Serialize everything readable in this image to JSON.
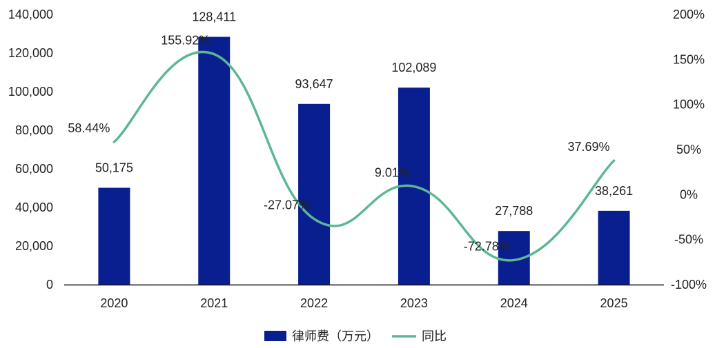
{
  "chart_data": {
    "type": "bar",
    "categories": [
      "2020",
      "2021",
      "2022",
      "2023",
      "2024",
      "2025"
    ],
    "series": [
      {
        "name": "律师费（万元）",
        "type": "bar",
        "axis": "left",
        "values": [
          50175,
          128411,
          93647,
          102089,
          27788,
          38261
        ],
        "labels": [
          "50,175",
          "128,411",
          "93,647",
          "102,089",
          "27,788",
          "38,261"
        ]
      },
      {
        "name": "同比",
        "type": "line",
        "axis": "right",
        "values": [
          58.44,
          155.92,
          -27.07,
          9.01,
          -72.78,
          37.69
        ],
        "labels": [
          "58.44%",
          "155.92%",
          "-27.07%",
          "9.01%",
          "-72.78%",
          "37.69%"
        ]
      }
    ],
    "left_axis": {
      "ylim": [
        0,
        140000
      ],
      "ticks": [
        "0",
        "20,000",
        "40,000",
        "60,000",
        "80,000",
        "100,000",
        "120,000",
        "140,000"
      ]
    },
    "right_axis": {
      "ylim": [
        -100,
        200
      ],
      "ticks": [
        "-100%",
        "-50%",
        "0%",
        "50%",
        "100%",
        "150%",
        "200%"
      ]
    },
    "grid": false,
    "legend_position": "bottom-center",
    "colors": {
      "bar": "#0a1f8f",
      "line": "#5cb892"
    }
  }
}
